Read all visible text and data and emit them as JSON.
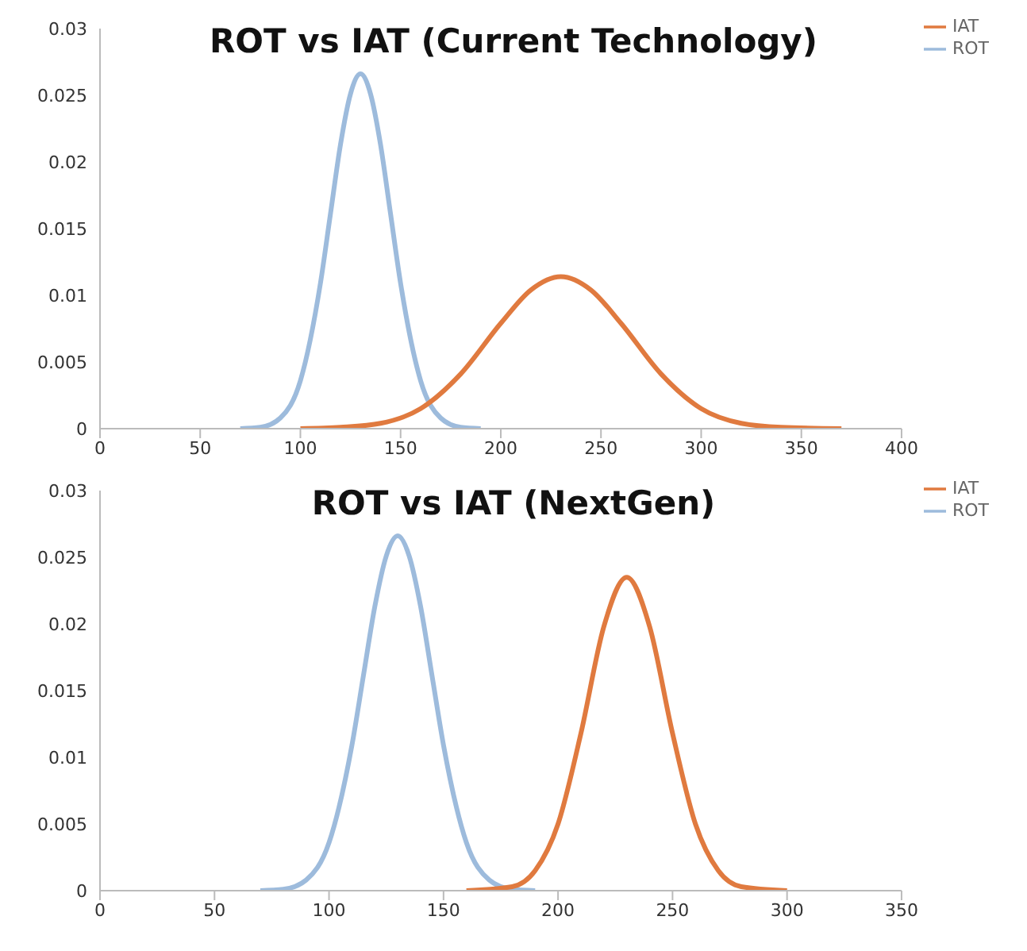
{
  "chart_data": [
    {
      "type": "line",
      "title": "ROT vs IAT (Current Technology)",
      "xlim": [
        0,
        400
      ],
      "xticks": [
        0,
        50,
        100,
        150,
        200,
        250,
        300,
        350,
        400
      ],
      "ylim": [
        0,
        0.03
      ],
      "yticks": [
        0,
        0.005,
        0.01,
        0.015,
        0.02,
        0.025,
        0.03
      ],
      "grid": false,
      "legend": "top right",
      "marker": "none",
      "line_style": "solid",
      "series": [
        {
          "name": "ROT",
          "color": "#9dbbdc",
          "x": [
            70,
            80,
            90,
            100,
            110,
            115,
            120,
            125,
            130,
            135,
            140,
            145,
            150,
            160,
            170,
            180,
            190
          ],
          "values": [
            0,
            0.0001,
            0.0008,
            0.0036,
            0.0109,
            0.0161,
            0.0213,
            0.0251,
            0.0266,
            0.0251,
            0.0213,
            0.0161,
            0.0109,
            0.0036,
            0.0008,
            0.0001,
            0
          ]
        },
        {
          "name": "IAT",
          "color": "#e07a3f",
          "x": [
            100,
            120,
            140,
            160,
            180,
            200,
            215,
            230,
            245,
            260,
            280,
            300,
            320,
            340,
            370
          ],
          "values": [
            0,
            0.0001,
            0.0004,
            0.0015,
            0.0041,
            0.0079,
            0.0104,
            0.0114,
            0.0104,
            0.0079,
            0.0041,
            0.0015,
            0.0004,
            0.0001,
            0
          ]
        }
      ]
    },
    {
      "type": "line",
      "title": "ROT vs IAT (NextGen)",
      "xlim": [
        0,
        350
      ],
      "xticks": [
        0,
        50,
        100,
        150,
        200,
        250,
        300,
        350
      ],
      "ylim": [
        0,
        0.03
      ],
      "yticks": [
        0,
        0.005,
        0.01,
        0.015,
        0.02,
        0.025,
        0.03
      ],
      "grid": false,
      "legend": "top right",
      "marker": "none",
      "line_style": "solid",
      "series": [
        {
          "name": "ROT",
          "color": "#9dbbdc",
          "x": [
            70,
            80,
            90,
            100,
            110,
            115,
            120,
            125,
            130,
            135,
            140,
            145,
            150,
            160,
            170,
            180,
            190
          ],
          "values": [
            0,
            0.0001,
            0.0008,
            0.0036,
            0.0109,
            0.0161,
            0.0213,
            0.0251,
            0.0266,
            0.0251,
            0.0213,
            0.0161,
            0.0109,
            0.0036,
            0.0008,
            0.0001,
            0
          ]
        },
        {
          "name": "IAT",
          "color": "#e07a3f",
          "x": [
            160,
            180,
            190,
            200,
            210,
            220,
            230,
            240,
            250,
            260,
            270,
            280,
            300
          ],
          "values": [
            0,
            0.0003,
            0.0015,
            0.005,
            0.0118,
            0.0198,
            0.0235,
            0.0198,
            0.0118,
            0.005,
            0.0015,
            0.0003,
            0
          ]
        }
      ]
    }
  ]
}
